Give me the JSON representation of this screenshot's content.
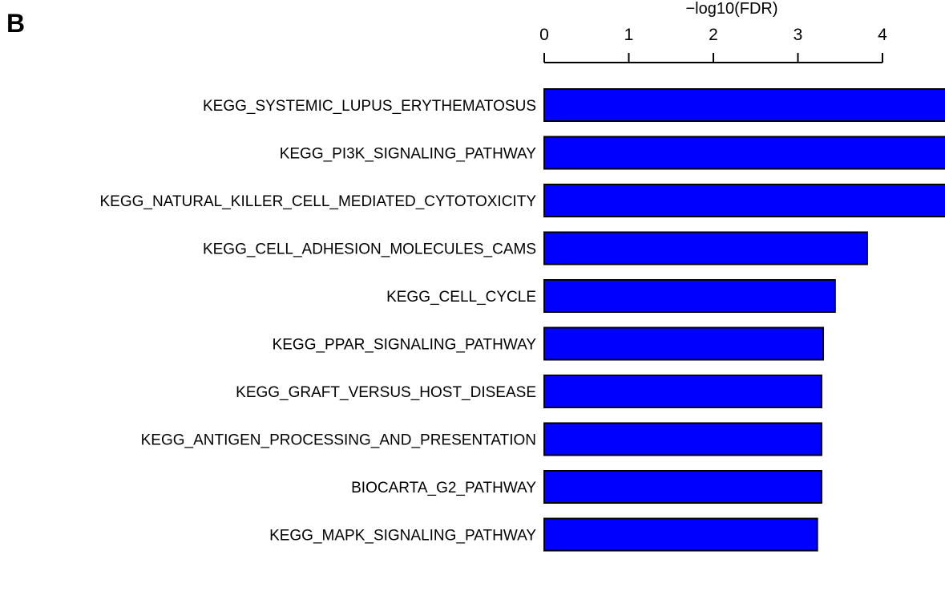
{
  "panel_label": "B",
  "chart_data": {
    "type": "bar",
    "orientation": "horizontal",
    "title": "",
    "xlabel": "−log10(FDR)",
    "ylabel": "",
    "xlim": [
      0,
      4.75
    ],
    "x_ticks": [
      0,
      1,
      2,
      3,
      4
    ],
    "x_tick_labels": [
      "0",
      "1",
      "2",
      "3",
      "4"
    ],
    "axis_position": "top",
    "grid": false,
    "legend": "none",
    "bar_color": "#0000ff",
    "bar_edge_color": "#000000",
    "categories": [
      "KEGG_SYSTEMIC_LUPUS_ERYTHEMATOSUS",
      "KEGG_PI3K_SIGNALING_PATHWAY",
      "KEGG_NATURAL_KILLER_CELL_MEDIATED_CYTOTOXICITY",
      "KEGG_CELL_ADHESION_MOLECULES_CAMS",
      "KEGG_CELL_CYCLE",
      "KEGG_PPAR_SIGNALING_PATHWAY",
      "KEGG_GRAFT_VERSUS_HOST_DISEASE",
      "KEGG_ANTIGEN_PROCESSING_AND_PRESENTATION",
      "BIOCARTA_G2_PATHWAY",
      "KEGG_MAPK_SIGNALING_PATHWAY"
    ],
    "values": [
      4.8,
      4.8,
      4.8,
      3.8,
      3.42,
      3.28,
      3.26,
      3.26,
      3.26,
      3.21
    ]
  }
}
